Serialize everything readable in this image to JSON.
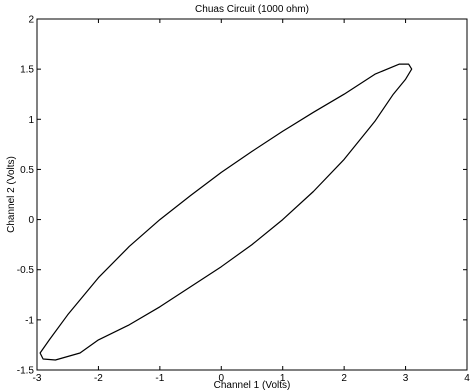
{
  "chart_data": {
    "type": "line",
    "title": "Chuas Circuit (1000 ohm)",
    "xlabel": "Channel 1 (Volts)",
    "ylabel": "Channel 2 (Volts)",
    "xlim": [
      -3,
      4
    ],
    "ylim": [
      -1.5,
      2
    ],
    "xticks": [
      -3,
      -2,
      -1,
      0,
      1,
      2,
      3,
      4
    ],
    "yticks": [
      -1.5,
      -1,
      -0.5,
      0,
      0.5,
      1,
      1.5,
      2
    ],
    "xtick_labels": [
      "-3",
      "-2",
      "-1",
      "0",
      "1",
      "2",
      "3",
      "4"
    ],
    "ytick_labels": [
      "-1.5",
      "-1",
      "-0.5",
      "0",
      "0.5",
      "1",
      "1.5",
      "2"
    ],
    "grid": false,
    "series": [
      {
        "color": "#000000",
        "x": [
          3.1,
          3.05,
          2.9,
          2.5,
          2.0,
          1.5,
          1.0,
          0.5,
          0.0,
          -0.5,
          -1.0,
          -1.5,
          -2.0,
          -2.5,
          -2.8,
          -2.95,
          -2.9,
          -2.7,
          -2.3,
          -2.0,
          -1.5,
          -1.0,
          -0.5,
          0.0,
          0.5,
          1.0,
          1.5,
          2.0,
          2.5,
          2.8,
          3.0,
          3.1
        ],
        "y": [
          1.5,
          1.55,
          1.55,
          1.45,
          1.25,
          1.07,
          0.88,
          0.68,
          0.47,
          0.24,
          0.0,
          -0.27,
          -0.58,
          -0.95,
          -1.2,
          -1.33,
          -1.39,
          -1.4,
          -1.33,
          -1.2,
          -1.05,
          -0.87,
          -0.67,
          -0.47,
          -0.25,
          0.0,
          0.28,
          0.6,
          0.98,
          1.25,
          1.4,
          1.5
        ]
      }
    ]
  }
}
